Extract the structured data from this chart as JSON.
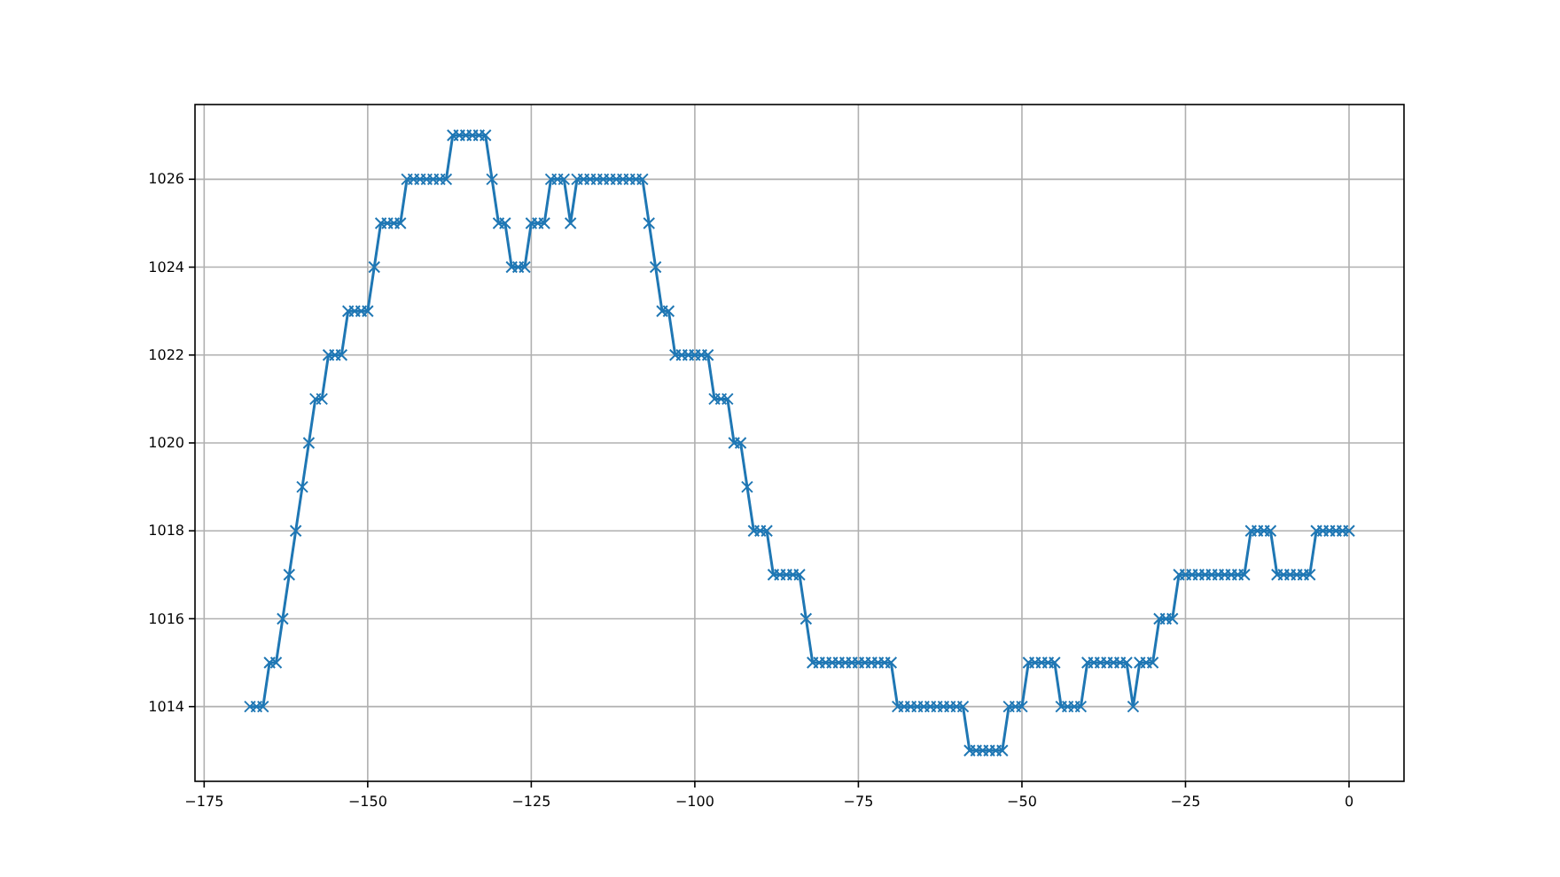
{
  "chart_data": {
    "type": "line",
    "x": [
      -168,
      -167,
      -166,
      -165,
      -164,
      -163,
      -162,
      -161,
      -160,
      -159,
      -158,
      -157,
      -156,
      -155,
      -154,
      -153,
      -152,
      -151,
      -150,
      -149,
      -148,
      -147,
      -146,
      -145,
      -144,
      -143,
      -142,
      -141,
      -140,
      -139,
      -138,
      -137,
      -136,
      -135,
      -134,
      -133,
      -132,
      -131,
      -130,
      -129,
      -128,
      -127,
      -126,
      -125,
      -124,
      -123,
      -122,
      -121,
      -120,
      -119,
      -118,
      -117,
      -116,
      -115,
      -114,
      -113,
      -112,
      -111,
      -110,
      -109,
      -108,
      -107,
      -106,
      -105,
      -104,
      -103,
      -102,
      -101,
      -100,
      -99,
      -98,
      -97,
      -96,
      -95,
      -94,
      -93,
      -92,
      -91,
      -90,
      -89,
      -88,
      -87,
      -86,
      -85,
      -84,
      -83,
      -82,
      -81,
      -80,
      -79,
      -78,
      -77,
      -76,
      -75,
      -74,
      -73,
      -72,
      -71,
      -70,
      -69,
      -68,
      -67,
      -66,
      -65,
      -64,
      -63,
      -62,
      -61,
      -60,
      -59,
      -58,
      -57,
      -56,
      -55,
      -54,
      -53,
      -52,
      -51,
      -50,
      -49,
      -48,
      -47,
      -46,
      -45,
      -44,
      -43,
      -42,
      -41,
      -40,
      -39,
      -38,
      -37,
      -36,
      -35,
      -34,
      -33,
      -32,
      -31,
      -30,
      -29,
      -28,
      -27,
      -26,
      -25,
      -24,
      -23,
      -22,
      -21,
      -20,
      -19,
      -18,
      -17,
      -16,
      -15,
      -14,
      -13,
      -12,
      -11,
      -10,
      -9,
      -8,
      -7,
      -6,
      -5,
      -4,
      -3,
      -2,
      -1,
      0
    ],
    "series": [
      {
        "color": "#1f77b4",
        "values": [
          1014,
          1014,
          1014,
          1015,
          1015,
          1016,
          1017,
          1018,
          1019,
          1020,
          1021,
          1021,
          1022,
          1022,
          1022,
          1023,
          1023,
          1023,
          1023,
          1024,
          1025,
          1025,
          1025,
          1025,
          1026,
          1026,
          1026,
          1026,
          1026,
          1026,
          1026,
          1027,
          1027,
          1027,
          1027,
          1027,
          1027,
          1026,
          1025,
          1025,
          1024,
          1024,
          1024,
          1025,
          1025,
          1025,
          1026,
          1026,
          1026,
          1025,
          1026,
          1026,
          1026,
          1026,
          1026,
          1026,
          1026,
          1026,
          1026,
          1026,
          1026,
          1025,
          1024,
          1023,
          1023,
          1022,
          1022,
          1022,
          1022,
          1022,
          1022,
          1021,
          1021,
          1021,
          1020,
          1020,
          1019,
          1018,
          1018,
          1018,
          1017,
          1017,
          1017,
          1017,
          1017,
          1016,
          1015,
          1015,
          1015,
          1015,
          1015,
          1015,
          1015,
          1015,
          1015,
          1015,
          1015,
          1015,
          1015,
          1014,
          1014,
          1014,
          1014,
          1014,
          1014,
          1014,
          1014,
          1014,
          1014,
          1014,
          1013,
          1013,
          1013,
          1013,
          1013,
          1013,
          1014,
          1014,
          1014,
          1015,
          1015,
          1015,
          1015,
          1015,
          1014,
          1014,
          1014,
          1014,
          1015,
          1015,
          1015,
          1015,
          1015,
          1015,
          1015,
          1014,
          1015,
          1015,
          1015,
          1016,
          1016,
          1016,
          1017,
          1017,
          1017,
          1017,
          1017,
          1017,
          1017,
          1017,
          1017,
          1017,
          1017,
          1018,
          1018,
          1018,
          1018,
          1017,
          1017,
          1017,
          1017,
          1017,
          1017,
          1018,
          1018,
          1018,
          1018,
          1018,
          1018
        ]
      }
    ],
    "xlim": [
      -176.4,
      8.4
    ],
    "ylim": [
      1012.3,
      1027.7
    ],
    "xticks": [
      {
        "value": -175,
        "label": "−175"
      },
      {
        "value": -150,
        "label": "−150"
      },
      {
        "value": -125,
        "label": "−125"
      },
      {
        "value": -100,
        "label": "−100"
      },
      {
        "value": -75,
        "label": "−75"
      },
      {
        "value": -50,
        "label": "−50"
      },
      {
        "value": -25,
        "label": "−25"
      },
      0
    ],
    "yticks": [
      1014,
      1016,
      1018,
      1020,
      1022,
      1024,
      1026
    ],
    "grid": true,
    "marker": "cross",
    "line_style": "solid"
  }
}
